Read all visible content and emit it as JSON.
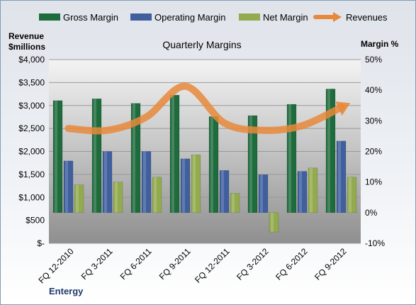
{
  "chart_data": {
    "type": "bar",
    "title": "Quarterly Margins",
    "categories": [
      "FQ 12-2010",
      "FQ 3-2011",
      "FQ 6-2011",
      "FQ 9-2011",
      "FQ 12-2011",
      "FQ 3-2012",
      "FQ 6-2012",
      "FQ 9-2012"
    ],
    "series": [
      {
        "name": "Gross Margin",
        "axis": "right",
        "color": "#1e6b3c",
        "values": [
          36.6,
          37.2,
          35.7,
          38.4,
          31.4,
          31.7,
          35.4,
          40.4
        ]
      },
      {
        "name": "Operating Margin",
        "axis": "right",
        "color": "#3f5f9e",
        "values": [
          16.9,
          20.0,
          20.0,
          17.6,
          13.8,
          12.4,
          13.5,
          23.4
        ]
      },
      {
        "name": "Net Margin",
        "axis": "right",
        "color": "#93ab4f",
        "values": [
          9.1,
          10.0,
          11.6,
          18.9,
          6.3,
          -6.3,
          14.6,
          11.6
        ]
      },
      {
        "name": "Revenues",
        "axis": "left",
        "type": "line",
        "color": "#e8883a",
        "values": [
          2500,
          2460,
          2750,
          3420,
          2620,
          2460,
          2560,
          2960
        ]
      }
    ],
    "left_axis": {
      "label": "Revenue\n$millions",
      "ticks": [
        "$-",
        "$500",
        "$1,000",
        "$1,500",
        "$2,000",
        "$2,500",
        "$3,000",
        "$3,500",
        "$4,000"
      ],
      "range": [
        0,
        4000
      ]
    },
    "right_axis": {
      "label": "Margin %",
      "ticks": [
        "-10%",
        "0%",
        "10%",
        "20%",
        "30%",
        "40%",
        "50%"
      ],
      "range": [
        -10,
        50
      ]
    },
    "legend_position": "top",
    "grid": true
  },
  "footer": {
    "company": "Entergy"
  }
}
